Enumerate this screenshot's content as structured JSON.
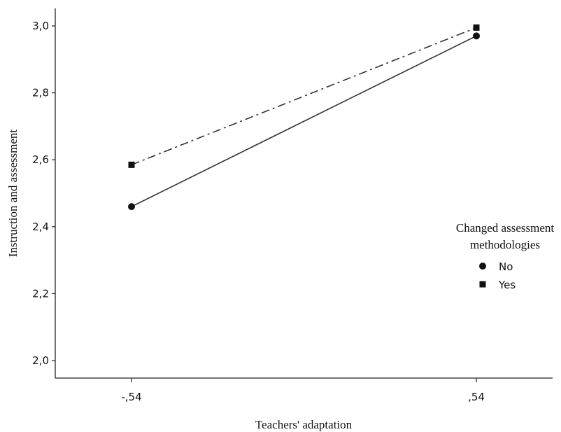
{
  "chart_data": {
    "type": "line",
    "title": "",
    "xlabel": "Teachers' adaptation",
    "ylabel": "Instruction and assessment",
    "categories": [
      "-,54",
      ",54"
    ],
    "x": [
      -0.54,
      0.54
    ],
    "ylim": [
      2.0,
      3.0
    ],
    "yticks": [
      2.0,
      2.2,
      2.4,
      2.6,
      2.8,
      3.0
    ],
    "ytick_labels": [
      "2,0",
      "2,2",
      "2,4",
      "2,6",
      "2,8",
      "3,0"
    ],
    "grid": false,
    "legend": {
      "title_lines": [
        "Changed assessment",
        "methodologies"
      ],
      "placement": "right"
    },
    "series": [
      {
        "name": "No",
        "values": [
          2.46,
          2.97
        ],
        "marker": "circle",
        "line_style": "solid",
        "color": "#333333"
      },
      {
        "name": "Yes",
        "values": [
          2.585,
          2.995
        ],
        "marker": "square",
        "line_style": "dash-dot",
        "color": "#333333"
      }
    ]
  }
}
